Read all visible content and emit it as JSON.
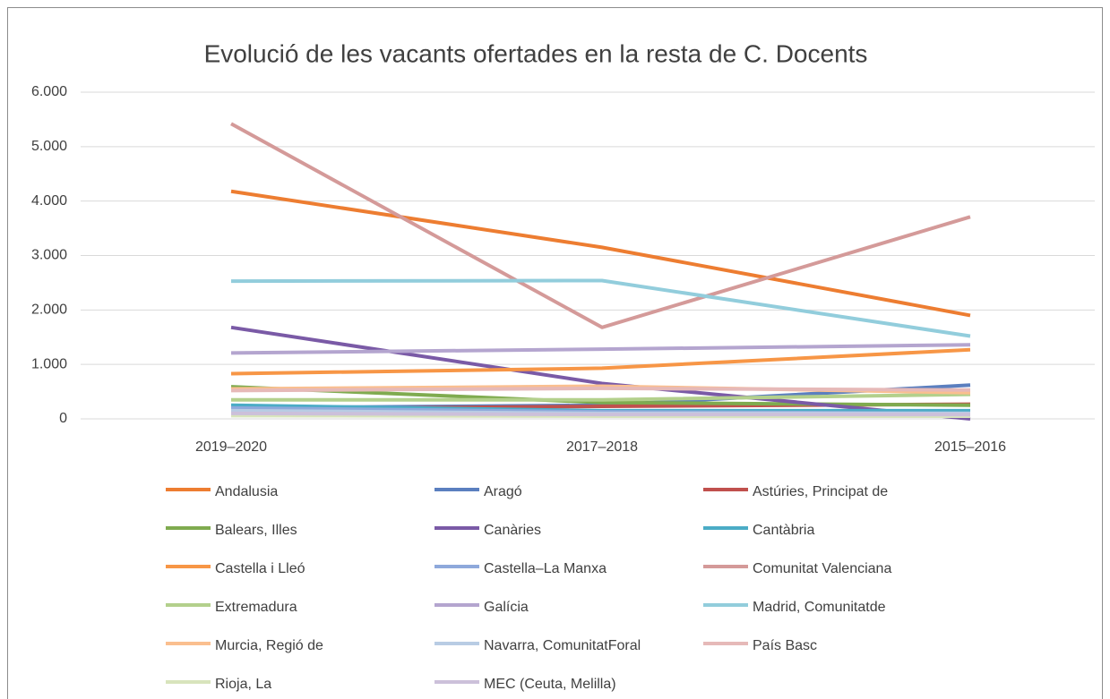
{
  "chart_data": {
    "type": "line",
    "title": "Evolució de les vacants ofertades en la resta de C. Docents",
    "categories": [
      "2019–2020",
      "2017–2018",
      "2015–2016"
    ],
    "ylim": [
      0,
      6000
    ],
    "yticks": [
      0,
      {
        "value": 1000,
        "label": "1.000"
      },
      {
        "value": 2000,
        "label": "2.000"
      },
      {
        "value": 3000,
        "label": "3.000"
      },
      {
        "value": 4000,
        "label": "4.000"
      },
      {
        "value": 5000,
        "label": "5.000"
      },
      {
        "value": 6000,
        "label": "6.000"
      }
    ],
    "grid": true,
    "legend": "bottom",
    "series": [
      {
        "name": "Andalusia",
        "color": "#ed7d31",
        "values": [
          4180,
          3150,
          1900
        ]
      },
      {
        "name": "Aragó",
        "color": "#5b7fbf",
        "values": [
          200,
          250,
          620
        ]
      },
      {
        "name": "Astúries, Principat de",
        "color": "#c0504d",
        "values": [
          180,
          230,
          270
        ]
      },
      {
        "name": "Balears, Illes",
        "color": "#7fab4f",
        "values": [
          590,
          300,
          250
        ]
      },
      {
        "name": "Canàries",
        "color": "#7a5aa6",
        "values": [
          1680,
          650,
          0
        ]
      },
      {
        "name": "Cantàbria",
        "color": "#4bacc6",
        "values": [
          250,
          150,
          150
        ]
      },
      {
        "name": "Castella i Lleó",
        "color": "#f79646",
        "values": [
          830,
          930,
          1270
        ]
      },
      {
        "name": "Castella–La Manxa",
        "color": "#8ea9db",
        "values": [
          200,
          130,
          100
        ]
      },
      {
        "name": "Comunitat Valenciana",
        "color": "#d49a99",
        "values": [
          5420,
          1680,
          3710
        ]
      },
      {
        "name": "Extremadura",
        "color": "#b3d08c",
        "values": [
          350,
          350,
          450
        ]
      },
      {
        "name": "Galícia",
        "color": "#b4a5cf",
        "values": [
          1210,
          1280,
          1360
        ]
      },
      {
        "name": "Madrid, Comunitatde",
        "color": "#92cddc",
        "values": [
          2530,
          2540,
          1520
        ]
      },
      {
        "name": "Murcia, Regió de",
        "color": "#fabf8f",
        "values": [
          550,
          600,
          480
        ]
      },
      {
        "name": "Navarra, ComunitatForal",
        "color": "#b8cce4",
        "values": [
          150,
          100,
          100
        ]
      },
      {
        "name": "País Basc",
        "color": "#e6b9b8",
        "values": [
          520,
          560,
          530
        ]
      },
      {
        "name": "Rioja, La",
        "color": "#d8e4bc",
        "values": [
          60,
          50,
          50
        ]
      },
      {
        "name": "MEC (Ceuta, Melilla)",
        "color": "#ccc0da",
        "values": [
          100,
          80,
          80
        ]
      }
    ]
  }
}
